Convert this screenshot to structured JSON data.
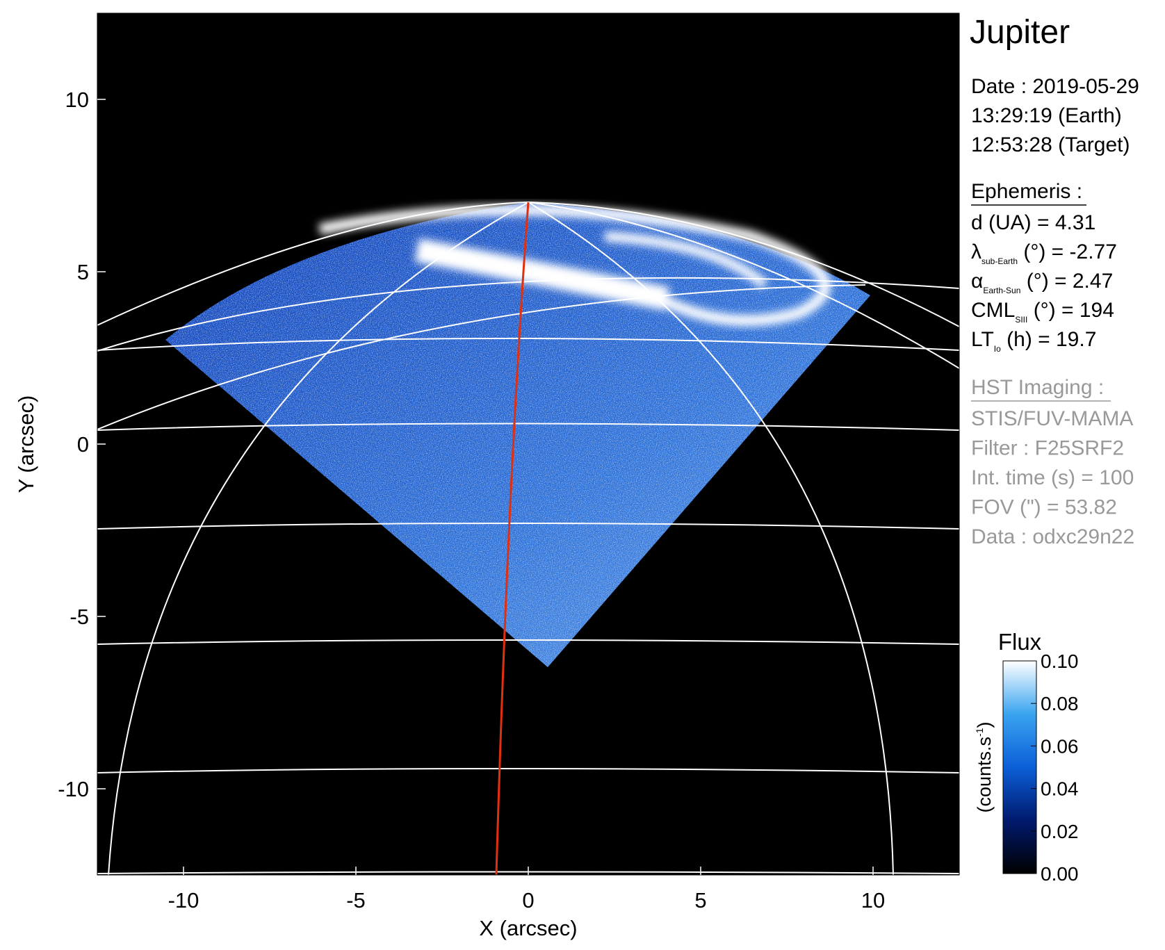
{
  "chart_data": {
    "type": "image",
    "xlabel": "X (arcsec)",
    "ylabel": "Y (arcsec)",
    "xlim": [
      -12.5,
      12.5
    ],
    "ylim": [
      -12.5,
      12.5
    ],
    "xticks": [
      -10,
      -5,
      0,
      5,
      10
    ],
    "yticks": [
      -10,
      -5,
      0,
      5,
      10
    ],
    "colorbar": {
      "title": "Flux",
      "label": "(counts.s",
      "label_sup": "-1",
      "label_end": ")",
      "clim": [
        0,
        0.1
      ],
      "ticks": [
        {
          "value": 0,
          "label": "0.00"
        },
        {
          "value": 0.02,
          "label": "0.02"
        },
        {
          "value": 0.04,
          "label": "0.04"
        },
        {
          "value": 0.06,
          "label": "0.06"
        },
        {
          "value": 0.08,
          "label": "0.08"
        },
        {
          "value": 0.1,
          "label": "0.10"
        }
      ]
    },
    "info": {
      "title": "Jupiter",
      "date": [
        "Date : 2019-05-29",
        "13:29:19 (Earth)",
        "12:53:28 (Target)"
      ],
      "ephemeris_title": "Ephemeris :",
      "ephemeris": [
        {
          "main": "d (UA)    = 4.31"
        },
        {
          "main": "λ",
          "sub": "sub-Earth",
          "rest": " (°) = -2.77"
        },
        {
          "main": "α",
          "sub": "Earth-Sun",
          "rest": " (°) = 2.47"
        },
        {
          "main": "CML",
          "sub": "SIII",
          "rest": " (°) = 194"
        },
        {
          "main": "LT",
          "sub": "Io",
          "rest": " (h) = 19.7"
        }
      ],
      "imaging_title": "HST Imaging :",
      "imaging": [
        "STIS/FUV-MAMA",
        "Filter : F25SRF2",
        "Int. time (s) = 100",
        "FOV (\") = 53.82",
        "Data : odxc29n22"
      ]
    }
  }
}
